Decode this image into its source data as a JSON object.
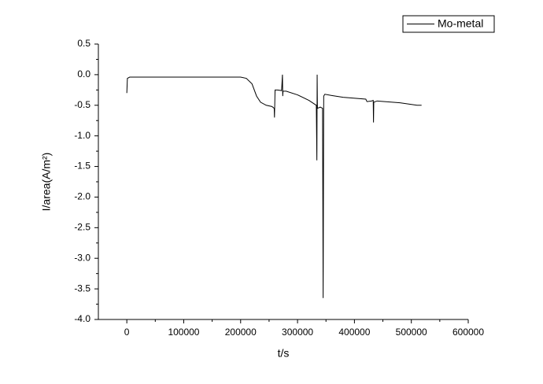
{
  "chart_data": {
    "type": "line",
    "x_label": "t/s",
    "y_label": "I/area(A/m²)",
    "xlim": [
      -50000,
      600000
    ],
    "xticks": [
      0,
      100000,
      200000,
      300000,
      400000,
      500000,
      600000
    ],
    "ylim": [
      -4.0,
      0.5
    ],
    "yticks": [
      0.5,
      {
        "value": 0,
        "label": "0.0"
      },
      -0.5,
      {
        "value": -1,
        "label": "-1.0"
      },
      -1.5,
      {
        "value": -2,
        "label": "-2.0"
      },
      -2.5,
      {
        "value": -3,
        "label": "-3.0"
      },
      -3.5,
      {
        "value": -4,
        "label": "-4.0"
      }
    ],
    "legend_position": "upper right",
    "x": [
      0,
      1000,
      5000,
      50000,
      100000,
      150000,
      200000,
      210000,
      220000,
      228000,
      235000,
      245000,
      255000,
      259000,
      259500,
      260500,
      265000,
      272000,
      273500,
      274000,
      274500,
      280000,
      300000,
      320000,
      333000,
      334000,
      334500,
      335000,
      340000,
      344000,
      345000,
      346000,
      348000,
      360000,
      380000,
      420000,
      422000,
      430000,
      433000,
      433500,
      434000,
      440000,
      480000,
      510000,
      518000
    ],
    "series": [
      {
        "name": "Mo-metal",
        "color": "#000000",
        "values": [
          -0.3,
          -0.06,
          -0.04,
          -0.04,
          -0.04,
          -0.04,
          -0.04,
          -0.06,
          -0.15,
          -0.35,
          -0.45,
          -0.5,
          -0.52,
          -0.55,
          -0.7,
          -0.25,
          -0.25,
          -0.26,
          0.0,
          -0.35,
          -0.27,
          -0.27,
          -0.33,
          -0.42,
          -0.5,
          -1.4,
          0.0,
          -0.55,
          -0.53,
          -0.55,
          -3.65,
          -0.35,
          -0.32,
          -0.34,
          -0.37,
          -0.4,
          -0.44,
          -0.43,
          -0.42,
          -0.78,
          -0.45,
          -0.43,
          -0.46,
          -0.5,
          -0.5
        ]
      }
    ]
  }
}
